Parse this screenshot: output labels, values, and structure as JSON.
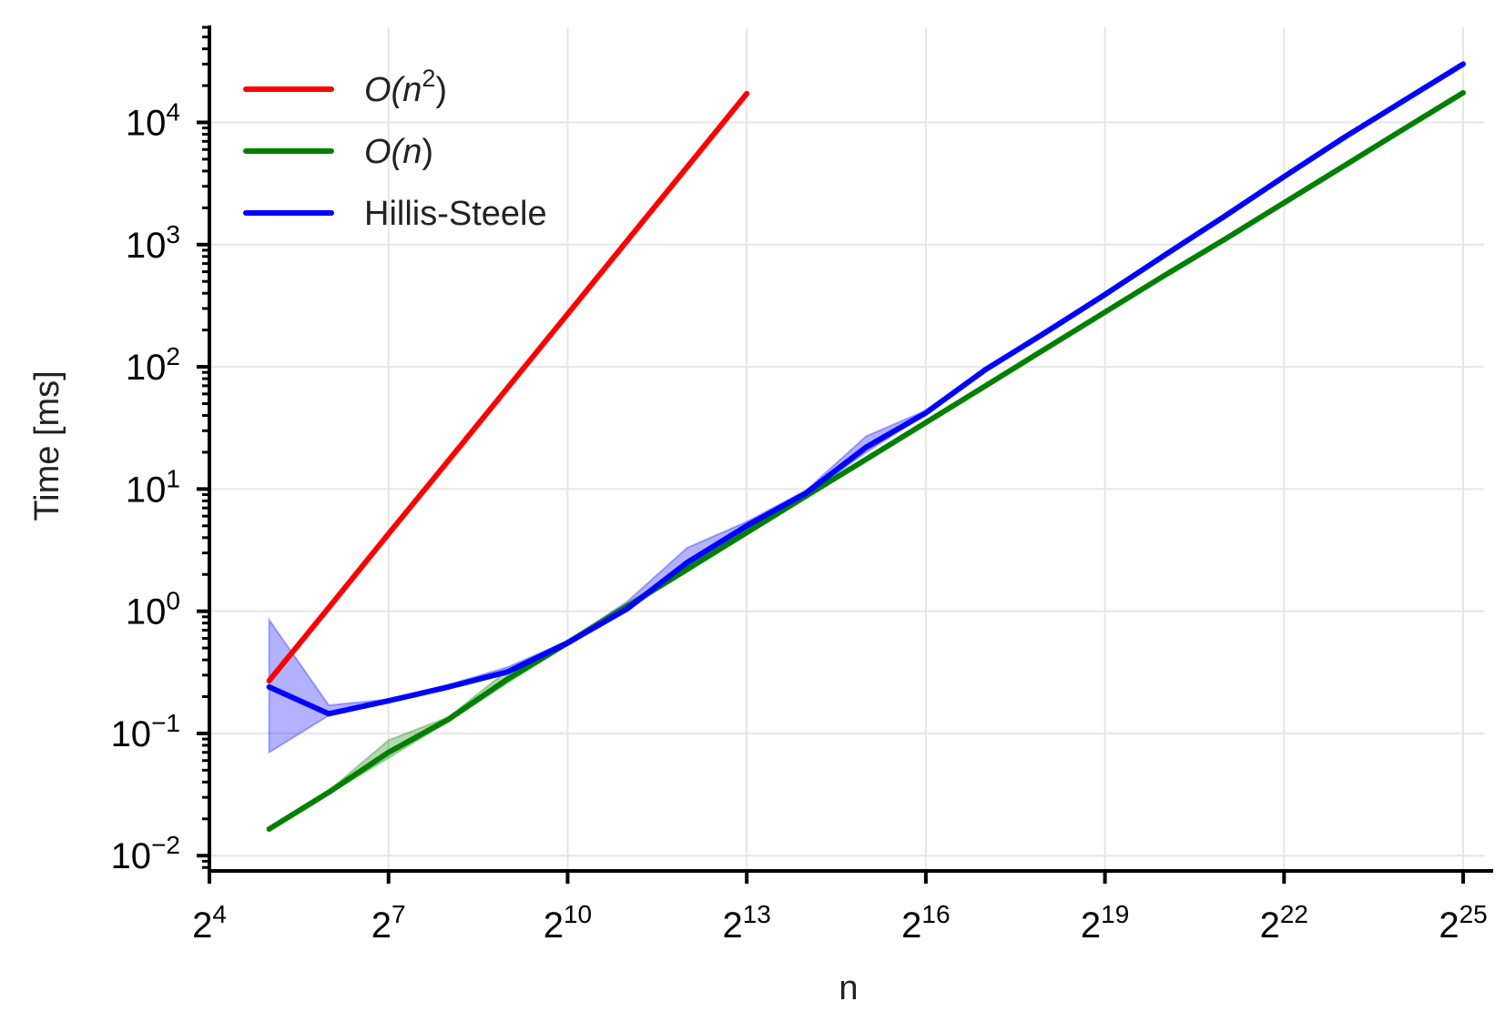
{
  "chart_data": {
    "type": "line",
    "xlabel": "n",
    "ylabel": "Time [ms]",
    "x_scale": "log2",
    "y_scale": "log10",
    "grid": true,
    "legend_position": "top-left",
    "xlim_exponents": [
      4,
      25.35
    ],
    "ylim": [
      0.0075,
      60000
    ],
    "x_ticks": [
      {
        "base": "2",
        "exp": "4",
        "value": 16
      },
      {
        "base": "2",
        "exp": "7",
        "value": 128
      },
      {
        "base": "2",
        "exp": "10",
        "value": 1024
      },
      {
        "base": "2",
        "exp": "13",
        "value": 8192
      },
      {
        "base": "2",
        "exp": "16",
        "value": 65536
      },
      {
        "base": "2",
        "exp": "19",
        "value": 524288
      },
      {
        "base": "2",
        "exp": "22",
        "value": 4194304
      },
      {
        "base": "2",
        "exp": "25",
        "value": 33554432
      }
    ],
    "y_ticks": [
      {
        "base": "10",
        "exp": "−2",
        "value": 0.01
      },
      {
        "base": "10",
        "exp": "−1",
        "value": 0.1
      },
      {
        "base": "10",
        "exp": "0",
        "value": 1
      },
      {
        "base": "10",
        "exp": "1",
        "value": 10
      },
      {
        "base": "10",
        "exp": "2",
        "value": 100
      },
      {
        "base": "10",
        "exp": "3",
        "value": 1000
      },
      {
        "base": "10",
        "exp": "4",
        "value": 10000
      }
    ],
    "series": [
      {
        "name": "O(n²)",
        "legend": {
          "pre": "O(",
          "var": "n",
          "sup": "2",
          "post": ")"
        },
        "color": "#ff0000",
        "x": [
          32,
          64,
          128,
          256,
          512,
          1024,
          2048,
          4096,
          8192
        ],
        "y": [
          0.27,
          1.07,
          4.3,
          17,
          68,
          270,
          1080,
          4300,
          17200
        ]
      },
      {
        "name": "O(n)",
        "legend": {
          "pre": "O(",
          "var": "n",
          "sup": "",
          "post": ")"
        },
        "color": "#008000",
        "x": [
          32,
          64,
          128,
          256,
          512,
          1024,
          2048,
          4096,
          8192,
          16384,
          32768,
          65536,
          131072,
          262144,
          524288,
          1048576,
          2097152,
          4194304,
          8388608,
          16777216,
          33554432
        ],
        "y": [
          0.0165,
          0.033,
          0.07,
          0.13,
          0.28,
          0.55,
          1.1,
          2.2,
          4.4,
          8.8,
          17.5,
          35,
          70,
          140,
          280,
          560,
          1100,
          2200,
          4400,
          8800,
          17500
        ],
        "band_lower": [
          0.016,
          0.032,
          0.063,
          0.125,
          0.26,
          0.53,
          1.05,
          2.1,
          4.3,
          8.6,
          17,
          34,
          68,
          137,
          275,
          550,
          1080,
          2160,
          4320,
          8640,
          17200
        ],
        "band_upper": [
          0.017,
          0.034,
          0.088,
          0.136,
          0.33,
          0.58,
          1.15,
          2.35,
          4.6,
          9.1,
          18,
          36,
          72,
          144,
          285,
          570,
          1120,
          2240,
          4480,
          8960,
          17800
        ]
      },
      {
        "name": "Hillis-Steele",
        "legend": {
          "pre": "Hillis-Steele",
          "var": "",
          "sup": "",
          "post": ""
        },
        "color": "#0000ff",
        "x": [
          32,
          64,
          128,
          256,
          512,
          1024,
          2048,
          4096,
          8192,
          16384,
          32768,
          65536,
          131072,
          262144,
          524288,
          1048576,
          2097152,
          4194304,
          8388608,
          16777216,
          33554432
        ],
        "y": [
          0.24,
          0.145,
          0.185,
          0.24,
          0.32,
          0.55,
          1.05,
          2.5,
          5.0,
          9.3,
          22,
          42,
          95,
          190,
          390,
          820,
          1700,
          3600,
          7500,
          15000,
          30000
        ],
        "band_lower": [
          0.07,
          0.14,
          0.18,
          0.235,
          0.31,
          0.53,
          1.0,
          2.3,
          4.7,
          9.0,
          20,
          41,
          92,
          185,
          380,
          800,
          1650,
          3500,
          7300,
          14600,
          29000
        ],
        "band_upper": [
          0.85,
          0.17,
          0.19,
          0.25,
          0.35,
          0.57,
          1.2,
          3.3,
          5.4,
          9.8,
          27,
          44,
          98,
          200,
          400,
          840,
          1750,
          3700,
          7700,
          15400,
          31000
        ]
      }
    ]
  }
}
